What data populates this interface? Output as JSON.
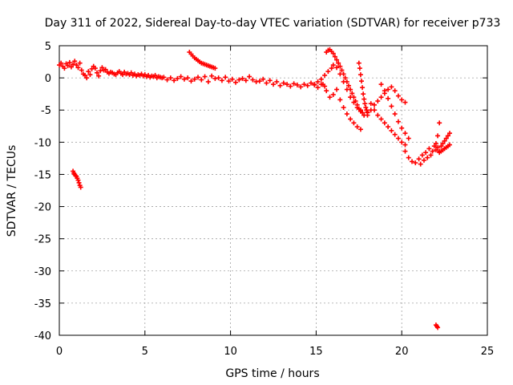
{
  "chart_data": {
    "type": "scatter",
    "title": "Day 311 of 2022, Sidereal Day-to-day VTEC variation (SDTVAR) for receiver p733",
    "xlabel": "GPS time / hours",
    "ylabel": "SDTVAR / TECUs",
    "xlim": [
      0,
      25
    ],
    "ylim": [
      -40,
      5
    ],
    "x_ticks": [
      0,
      5,
      10,
      15,
      20,
      25
    ],
    "y_ticks": [
      5,
      0,
      -5,
      -10,
      -15,
      -20,
      -25,
      -30,
      -35,
      -40
    ],
    "x_tick_labels": [
      "0",
      "5",
      "10",
      "15",
      "20",
      "25"
    ],
    "y_tick_labels": [
      "5",
      "0",
      "-5",
      "-10",
      "-15",
      "-20",
      "-25",
      "-30",
      "-35",
      "-40"
    ],
    "grid": true,
    "marker": "+",
    "color": "#ff0000",
    "series": [
      {
        "name": "main-band-early",
        "x": [
          0.0,
          0.1,
          0.2,
          0.3,
          0.4,
          0.5,
          0.6,
          0.7,
          0.8,
          0.9,
          1.0,
          1.1,
          1.2,
          1.3,
          1.4,
          1.5,
          1.6,
          1.7,
          1.8,
          1.9,
          2.0,
          2.1,
          2.2,
          2.3,
          2.4,
          2.5,
          2.6,
          2.7,
          2.8,
          2.9,
          3.0,
          3.1,
          3.2,
          3.3,
          3.4,
          3.5,
          3.6,
          3.7,
          3.8,
          3.9,
          4.0,
          4.1,
          4.2,
          4.3,
          4.4,
          4.5,
          4.6,
          4.7,
          4.8,
          4.9,
          5.0,
          5.1,
          5.2,
          5.3,
          5.4,
          5.5,
          5.6,
          5.7,
          5.8,
          5.9,
          6.0
        ],
        "y": [
          2.0,
          2.3,
          1.8,
          1.5,
          2.2,
          1.9,
          2.4,
          1.7,
          2.1,
          2.6,
          2.0,
          1.6,
          2.3,
          1.2,
          0.6,
          0.4,
          0.0,
          1.0,
          0.5,
          1.4,
          1.8,
          1.5,
          0.8,
          0.3,
          1.1,
          1.6,
          1.2,
          1.3,
          0.9,
          0.7,
          0.9,
          0.8,
          0.6,
          0.5,
          0.8,
          1.0,
          0.7,
          0.5,
          0.9,
          0.6,
          0.7,
          0.5,
          0.8,
          0.4,
          0.6,
          0.3,
          0.5,
          0.4,
          0.6,
          0.3,
          0.5,
          0.2,
          0.4,
          0.1,
          0.3,
          0.2,
          0.4,
          0.0,
          0.2,
          0.1,
          0.0
        ]
      },
      {
        "name": "main-band-mid",
        "x": [
          6.1,
          6.3,
          6.5,
          6.7,
          6.9,
          7.1,
          7.3,
          7.5,
          7.7,
          7.9,
          8.1,
          8.3,
          8.5,
          8.7,
          8.9,
          9.1,
          9.3,
          9.5,
          9.7,
          9.9,
          10.1,
          10.3,
          10.5,
          10.7,
          10.9,
          11.1,
          11.3,
          11.5,
          11.7,
          11.9,
          12.1,
          12.3,
          12.5,
          12.7,
          12.9,
          13.1,
          13.3,
          13.5,
          13.7,
          13.9,
          14.1,
          14.3,
          14.5,
          14.7,
          14.9,
          15.1,
          15.3,
          15.5
        ],
        "y": [
          0.1,
          -0.3,
          0.0,
          -0.4,
          -0.1,
          0.2,
          -0.2,
          0.0,
          -0.5,
          -0.2,
          0.1,
          -0.3,
          0.2,
          -0.6,
          0.3,
          -0.1,
          0.0,
          -0.4,
          0.1,
          -0.5,
          -0.2,
          -0.7,
          -0.3,
          -0.1,
          -0.4,
          0.2,
          -0.3,
          -0.6,
          -0.5,
          -0.2,
          -0.8,
          -0.4,
          -1.0,
          -0.6,
          -1.2,
          -0.8,
          -1.0,
          -1.3,
          -0.9,
          -1.1,
          -1.4,
          -1.0,
          -1.2,
          -0.8,
          -1.1,
          -1.5,
          -1.0,
          -1.3
        ]
      },
      {
        "name": "early-dip",
        "x": [
          0.8,
          0.85,
          0.9,
          0.95,
          1.0,
          1.05,
          1.1,
          1.15,
          1.2,
          1.25
        ],
        "y": [
          -14.5,
          -14.8,
          -15.0,
          -15.2,
          -15.3,
          -15.6,
          -15.9,
          -16.3,
          -16.7,
          -17.0
        ]
      },
      {
        "name": "arc-7-9h",
        "x": [
          7.6,
          7.7,
          7.8,
          7.9,
          8.0,
          8.1,
          8.2,
          8.3,
          8.4,
          8.5,
          8.6,
          8.7,
          8.8,
          8.9,
          9.0,
          9.1
        ],
        "y": [
          4.0,
          3.7,
          3.4,
          3.1,
          2.9,
          2.7,
          2.5,
          2.3,
          2.2,
          2.1,
          2.0,
          1.9,
          1.8,
          1.7,
          1.6,
          1.5
        ]
      },
      {
        "name": "post-15h-1",
        "x": [
          14.9,
          15.1,
          15.3,
          15.5,
          15.7,
          15.9,
          16.0,
          16.2,
          16.4,
          16.6,
          16.8,
          17.0,
          17.2,
          17.4,
          17.6,
          17.8,
          18.0
        ],
        "y": [
          -1.0,
          -0.6,
          -0.2,
          0.4,
          1.0,
          1.5,
          2.0,
          1.6,
          0.6,
          -0.6,
          -1.8,
          -3.0,
          -3.8,
          -4.6,
          -5.2,
          -5.8,
          -5.4
        ]
      },
      {
        "name": "post-15h-2",
        "x": [
          15.6,
          15.7,
          15.8,
          15.9,
          16.0,
          16.1,
          16.2,
          16.3,
          16.4,
          16.5,
          16.6,
          16.7,
          16.8,
          16.9,
          17.0,
          17.1,
          17.2,
          17.3,
          17.4,
          17.5,
          17.6,
          17.7,
          17.8
        ],
        "y": [
          4.0,
          4.3,
          4.4,
          4.1,
          3.8,
          3.3,
          2.8,
          2.3,
          1.8,
          1.2,
          0.6,
          0.0,
          -0.6,
          -1.2,
          -1.8,
          -2.4,
          -3.0,
          -3.6,
          -4.2,
          -4.8,
          -5.0,
          -5.4,
          -5.8
        ]
      },
      {
        "name": "post-15h-3",
        "x": [
          15.4,
          15.6,
          15.8,
          16.0,
          16.2,
          16.4,
          16.6,
          16.8,
          17.0,
          17.2,
          17.4,
          17.6
        ],
        "y": [
          -1.0,
          -2.0,
          -3.0,
          -2.6,
          -1.8,
          -3.4,
          -4.6,
          -5.6,
          -6.4,
          -7.0,
          -7.6,
          -8.0
        ]
      },
      {
        "name": "post-15h-4",
        "x": [
          17.5,
          17.55,
          17.6,
          17.65,
          17.7,
          17.75,
          17.8,
          17.85,
          17.9,
          17.95,
          18.0
        ],
        "y": [
          2.3,
          1.5,
          0.5,
          -0.5,
          -1.5,
          -2.5,
          -3.3,
          -4.0,
          -4.6,
          -5.0,
          -5.3
        ]
      },
      {
        "name": "post-15h-5",
        "x": [
          18.0,
          18.2,
          18.4,
          18.6,
          18.8,
          19.0,
          19.2,
          19.4,
          19.6,
          19.8,
          20.0,
          20.2
        ],
        "y": [
          -5.8,
          -5.0,
          -4.2,
          -3.6,
          -3.0,
          -2.4,
          -1.8,
          -1.4,
          -2.0,
          -2.8,
          -3.4,
          -3.8
        ]
      },
      {
        "name": "post-15h-6",
        "x": [
          18.2,
          18.4,
          18.6,
          18.8,
          19.0,
          19.2,
          19.4,
          19.6,
          19.8,
          20.0,
          20.2
        ],
        "y": [
          -4.0,
          -5.0,
          -5.8,
          -6.4,
          -7.0,
          -7.6,
          -8.2,
          -8.8,
          -9.4,
          -10.0,
          -10.4
        ]
      },
      {
        "name": "post-15h-7",
        "x": [
          18.8,
          19.0,
          19.2,
          19.4,
          19.6,
          19.8,
          20.0,
          20.2,
          20.4
        ],
        "y": [
          -1.0,
          -2.0,
          -3.2,
          -4.4,
          -5.6,
          -6.8,
          -7.8,
          -8.6,
          -9.4
        ]
      },
      {
        "name": "cluster-21h",
        "x": [
          20.2,
          20.4,
          20.6,
          20.8,
          21.0,
          21.1,
          21.2,
          21.3,
          21.4,
          21.5,
          21.6,
          21.7,
          21.8,
          21.9,
          22.0,
          22.1,
          22.2
        ],
        "y": [
          -11.4,
          -12.4,
          -13.0,
          -13.2,
          -12.6,
          -13.4,
          -12.0,
          -12.8,
          -11.6,
          -12.4,
          -11.0,
          -12.0,
          -11.4,
          -10.6,
          -10.2,
          -9.0,
          -7.0
        ]
      },
      {
        "name": "cluster-22h",
        "x": [
          22.0,
          22.1,
          22.2,
          22.3,
          22.4,
          22.5,
          22.6,
          22.7,
          22.8
        ],
        "y": [
          -11.2,
          -10.8,
          -11.4,
          -10.6,
          -10.2,
          -9.8,
          -9.4,
          -9.0,
          -8.6
        ]
      },
      {
        "name": "cluster-22h-b",
        "x": [
          22.2,
          22.3,
          22.4,
          22.5,
          22.6,
          22.7,
          22.8
        ],
        "y": [
          -11.6,
          -11.4,
          -11.2,
          -11.0,
          -10.8,
          -10.6,
          -10.4
        ]
      },
      {
        "name": "outlier-22h",
        "x": [
          22.0,
          22.05,
          22.1
        ],
        "y": [
          -38.4,
          -38.6,
          -38.8
        ]
      }
    ]
  }
}
